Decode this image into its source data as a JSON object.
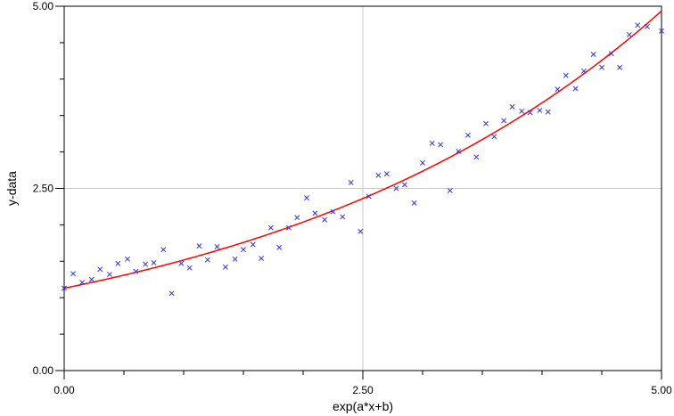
{
  "chart_data": {
    "type": "scatter",
    "title": "",
    "xlabel": "exp(a*x+b)",
    "ylabel": "y-data",
    "xlim": [
      0,
      5
    ],
    "ylim": [
      0,
      5
    ],
    "x_ticks": [
      {
        "value": 0,
        "label": "0.00"
      },
      {
        "value": 2.5,
        "label": "2.50"
      },
      {
        "value": 5,
        "label": "5.00"
      }
    ],
    "y_ticks": [
      {
        "value": 0,
        "label": "0.00"
      },
      {
        "value": 2.5,
        "label": "2.50"
      },
      {
        "value": 5,
        "label": "5.00"
      }
    ],
    "minor_tick_step": 0.5,
    "grid": true,
    "series": [
      {
        "kind": "scatter",
        "marker": "x",
        "color": "#3333dd",
        "points": [
          [
            0.0,
            1.13
          ],
          [
            0.075,
            1.33
          ],
          [
            0.15,
            1.21
          ],
          [
            0.23,
            1.25
          ],
          [
            0.3,
            1.39
          ],
          [
            0.38,
            1.32
          ],
          [
            0.45,
            1.47
          ],
          [
            0.53,
            1.53
          ],
          [
            0.6,
            1.36
          ],
          [
            0.68,
            1.46
          ],
          [
            0.75,
            1.48
          ],
          [
            0.83,
            1.66
          ],
          [
            0.9,
            1.06
          ],
          [
            0.98,
            1.47
          ],
          [
            1.05,
            1.41
          ],
          [
            1.13,
            1.71
          ],
          [
            1.2,
            1.52
          ],
          [
            1.28,
            1.7
          ],
          [
            1.35,
            1.42
          ],
          [
            1.43,
            1.53
          ],
          [
            1.5,
            1.66
          ],
          [
            1.58,
            1.73
          ],
          [
            1.65,
            1.54
          ],
          [
            1.73,
            1.96
          ],
          [
            1.8,
            1.69
          ],
          [
            1.88,
            1.96
          ],
          [
            1.95,
            2.1
          ],
          [
            2.03,
            2.37
          ],
          [
            2.1,
            2.16
          ],
          [
            2.18,
            2.07
          ],
          [
            2.25,
            2.18
          ],
          [
            2.33,
            2.11
          ],
          [
            2.4,
            2.58
          ],
          [
            2.48,
            1.91
          ],
          [
            2.55,
            2.39
          ],
          [
            2.63,
            2.68
          ],
          [
            2.7,
            2.7
          ],
          [
            2.78,
            2.5
          ],
          [
            2.85,
            2.55
          ],
          [
            2.93,
            2.3
          ],
          [
            3.0,
            2.85
          ],
          [
            3.08,
            3.12
          ],
          [
            3.15,
            3.1
          ],
          [
            3.23,
            2.47
          ],
          [
            3.3,
            3.01
          ],
          [
            3.38,
            3.23
          ],
          [
            3.45,
            2.93
          ],
          [
            3.53,
            3.39
          ],
          [
            3.6,
            3.21
          ],
          [
            3.68,
            3.43
          ],
          [
            3.75,
            3.62
          ],
          [
            3.83,
            3.56
          ],
          [
            3.9,
            3.54
          ],
          [
            3.98,
            3.57
          ],
          [
            4.05,
            3.55
          ],
          [
            4.13,
            3.86
          ],
          [
            4.2,
            4.05
          ],
          [
            4.28,
            3.87
          ],
          [
            4.35,
            4.11
          ],
          [
            4.43,
            4.34
          ],
          [
            4.5,
            4.16
          ],
          [
            4.58,
            4.35
          ],
          [
            4.65,
            4.16
          ],
          [
            4.73,
            4.61
          ],
          [
            4.8,
            4.74
          ],
          [
            4.88,
            4.72
          ],
          [
            5.0,
            4.66
          ]
        ]
      },
      {
        "kind": "line",
        "color": "#ff0000",
        "fit": {
          "formula": "y = b*exp(a*x)",
          "b": 1.13,
          "a": 0.2948
        }
      }
    ]
  }
}
